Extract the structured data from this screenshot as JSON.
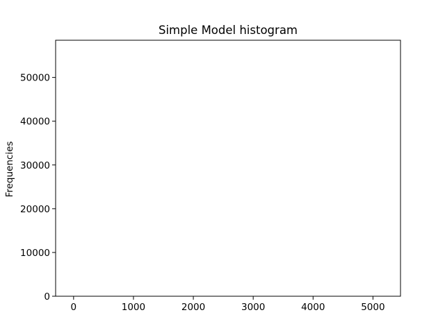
{
  "chart_data": {
    "type": "bar",
    "title": "Simple Model histogram",
    "xlabel": "",
    "ylabel": "Frequencies",
    "xlim": [
      -300,
      5460
    ],
    "ylim": [
      0,
      58500
    ],
    "x_ticks": [
      0,
      1000,
      2000,
      3000,
      4000,
      5000
    ],
    "y_ticks": [
      0,
      10000,
      20000,
      30000,
      40000,
      50000
    ],
    "bins": [],
    "grid": false,
    "legend": "none"
  }
}
